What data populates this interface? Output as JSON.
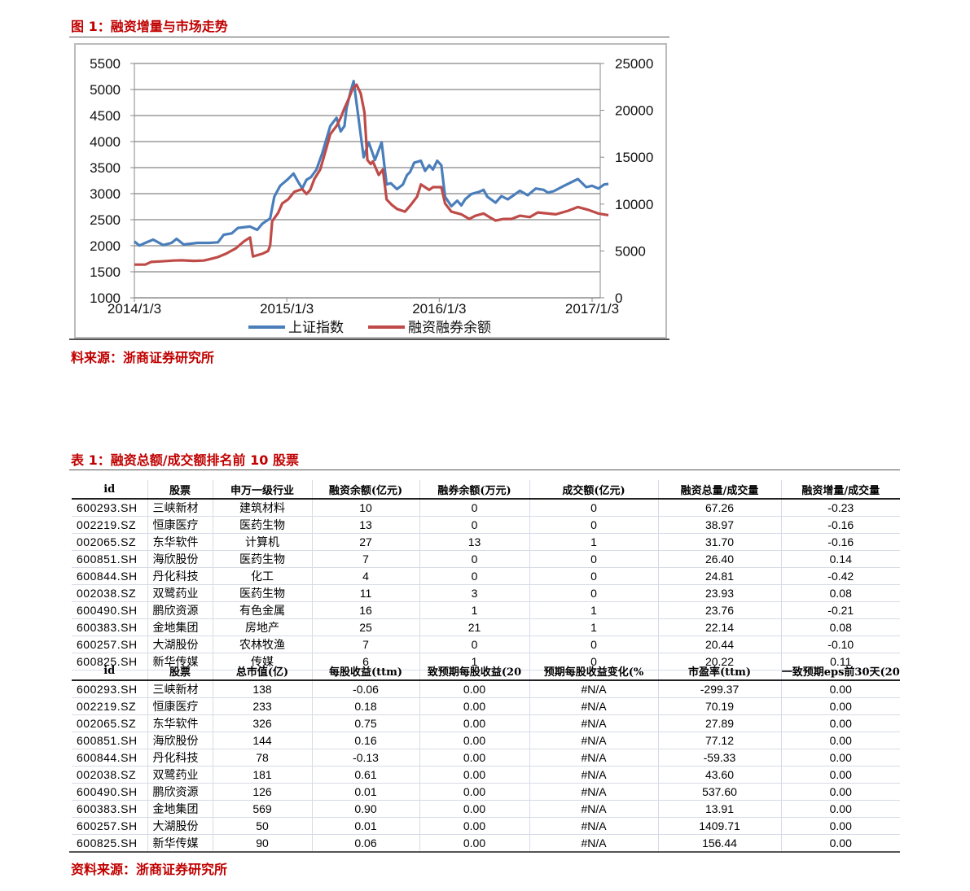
{
  "figure": {
    "title": "图 1：融资增量与市场走势",
    "source": "料来源：浙商证券研究所"
  },
  "chart_data": {
    "type": "line",
    "x_type": "date",
    "x_ticks": [
      "2014/1/3",
      "2015/1/3",
      "2016/1/3",
      "2017/1/3"
    ],
    "y_left": {
      "min": 1000,
      "max": 5500,
      "ticks": [
        1000,
        1500,
        2000,
        2500,
        3000,
        3500,
        4000,
        4500,
        5000,
        5500
      ]
    },
    "y_right": {
      "min": 0,
      "max": 25000,
      "ticks": [
        0,
        5000,
        10000,
        15000,
        20000,
        25000
      ]
    },
    "grid": true,
    "legend": "bottom",
    "series": [
      {
        "name": "上证指数",
        "axis": "left",
        "color": "#4a7ebb",
        "points": [
          [
            "2014-01-03",
            2081
          ],
          [
            "2014-01-15",
            2003
          ],
          [
            "2014-01-29",
            2055
          ],
          [
            "2014-02-17",
            2117
          ],
          [
            "2014-03-13",
            2013
          ],
          [
            "2014-04-02",
            2055
          ],
          [
            "2014-04-14",
            2133
          ],
          [
            "2014-05-01",
            2023
          ],
          [
            "2014-06-03",
            2055
          ],
          [
            "2014-07-02",
            2055
          ],
          [
            "2014-07-22",
            2065
          ],
          [
            "2014-08-05",
            2211
          ],
          [
            "2014-08-24",
            2237
          ],
          [
            "2014-09-08",
            2342
          ],
          [
            "2014-10-07",
            2368
          ],
          [
            "2014-10-24",
            2305
          ],
          [
            "2014-11-05",
            2420
          ],
          [
            "2014-11-24",
            2525
          ],
          [
            "2014-12-04",
            2942
          ],
          [
            "2014-12-18",
            3151
          ],
          [
            "2015-01-06",
            3281
          ],
          [
            "2015-01-19",
            3386
          ],
          [
            "2015-01-30",
            3229
          ],
          [
            "2015-02-09",
            3099
          ],
          [
            "2015-02-19",
            3266
          ],
          [
            "2015-03-02",
            3318
          ],
          [
            "2015-03-15",
            3464
          ],
          [
            "2015-03-29",
            3777
          ],
          [
            "2015-04-17",
            4299
          ],
          [
            "2015-05-02",
            4456
          ],
          [
            "2015-05-12",
            4195
          ],
          [
            "2015-05-21",
            4299
          ],
          [
            "2015-05-26",
            4639
          ],
          [
            "2015-06-05",
            4970
          ],
          [
            "2015-06-12",
            5161
          ],
          [
            "2015-06-22",
            4560
          ],
          [
            "2015-07-06",
            3699
          ],
          [
            "2015-07-18",
            3986
          ],
          [
            "2015-08-02",
            3647
          ],
          [
            "2015-08-18",
            3986
          ],
          [
            "2015-08-30",
            3177
          ],
          [
            "2015-09-09",
            3200
          ],
          [
            "2015-09-24",
            3088
          ],
          [
            "2015-10-08",
            3177
          ],
          [
            "2015-10-18",
            3360
          ],
          [
            "2015-10-25",
            3412
          ],
          [
            "2015-11-04",
            3595
          ],
          [
            "2015-11-20",
            3631
          ],
          [
            "2015-11-30",
            3438
          ],
          [
            "2015-12-10",
            3543
          ],
          [
            "2015-12-19",
            3464
          ],
          [
            "2015-12-29",
            3631
          ],
          [
            "2016-01-08",
            3543
          ],
          [
            "2016-01-17",
            2942
          ],
          [
            "2016-02-01",
            2760
          ],
          [
            "2016-02-15",
            2864
          ],
          [
            "2016-02-25",
            2775
          ],
          [
            "2016-03-05",
            2890
          ],
          [
            "2016-03-20",
            2994
          ],
          [
            "2016-04-08",
            3036
          ],
          [
            "2016-04-18",
            3073
          ],
          [
            "2016-04-27",
            2942
          ],
          [
            "2016-05-17",
            2827
          ],
          [
            "2016-05-31",
            2953
          ],
          [
            "2016-06-15",
            2890
          ],
          [
            "2016-06-29",
            2968
          ],
          [
            "2016-07-14",
            3057
          ],
          [
            "2016-08-02",
            2968
          ],
          [
            "2016-08-21",
            3099
          ],
          [
            "2016-09-09",
            3073
          ],
          [
            "2016-09-19",
            3020
          ],
          [
            "2016-10-03",
            3047
          ],
          [
            "2016-10-28",
            3151
          ],
          [
            "2016-11-30",
            3281
          ],
          [
            "2016-12-20",
            3125
          ],
          [
            "2017-01-03",
            3151
          ],
          [
            "2017-01-18",
            3099
          ],
          [
            "2017-02-01",
            3177
          ],
          [
            "2017-02-11",
            3188
          ]
        ]
      },
      {
        "name": "融资融券余额",
        "axis": "right",
        "color": "#be4b48",
        "points": [
          [
            "2014-01-03",
            3538
          ],
          [
            "2014-01-29",
            3538
          ],
          [
            "2014-02-12",
            3828
          ],
          [
            "2014-03-09",
            3886
          ],
          [
            "2014-04-07",
            3973
          ],
          [
            "2014-04-26",
            4002
          ],
          [
            "2014-05-25",
            3944
          ],
          [
            "2014-06-18",
            3973
          ],
          [
            "2014-07-02",
            4118
          ],
          [
            "2014-07-22",
            4350
          ],
          [
            "2014-08-10",
            4698
          ],
          [
            "2014-09-03",
            5278
          ],
          [
            "2014-09-22",
            6003
          ],
          [
            "2014-10-07",
            6438
          ],
          [
            "2014-10-14",
            4408
          ],
          [
            "2014-11-05",
            4698
          ],
          [
            "2014-11-19",
            4988
          ],
          [
            "2014-11-24",
            5568
          ],
          [
            "2014-11-29",
            8178
          ],
          [
            "2014-12-13",
            9048
          ],
          [
            "2014-12-23",
            10063
          ],
          [
            "2015-01-06",
            10498
          ],
          [
            "2015-01-21",
            11310
          ],
          [
            "2015-02-09",
            11600
          ],
          [
            "2015-02-19",
            11078
          ],
          [
            "2015-02-28",
            11513
          ],
          [
            "2015-03-10",
            12673
          ],
          [
            "2015-03-24",
            13688
          ],
          [
            "2015-04-08",
            16008
          ],
          [
            "2015-04-17",
            17458
          ],
          [
            "2015-05-02",
            18328
          ],
          [
            "2015-05-12",
            19198
          ],
          [
            "2015-05-21",
            20213
          ],
          [
            "2015-05-31",
            21228
          ],
          [
            "2015-06-09",
            22243
          ],
          [
            "2015-06-19",
            22736
          ],
          [
            "2015-06-29",
            21808
          ],
          [
            "2015-07-08",
            19778
          ],
          [
            "2015-07-15",
            14703
          ],
          [
            "2015-07-23",
            14268
          ],
          [
            "2015-07-28",
            14558
          ],
          [
            "2015-08-11",
            13108
          ],
          [
            "2015-08-21",
            13688
          ],
          [
            "2015-08-30",
            10498
          ],
          [
            "2015-09-11",
            9918
          ],
          [
            "2015-09-24",
            9483
          ],
          [
            "2015-10-13",
            9193
          ],
          [
            "2015-10-27",
            9918
          ],
          [
            "2015-11-11",
            10788
          ],
          [
            "2015-11-20",
            12093
          ],
          [
            "2015-11-30",
            11803
          ],
          [
            "2015-12-10",
            11513
          ],
          [
            "2015-12-19",
            11803
          ],
          [
            "2016-01-08",
            11803
          ],
          [
            "2016-01-17",
            10063
          ],
          [
            "2016-02-01",
            9193
          ],
          [
            "2016-02-25",
            8903
          ],
          [
            "2016-03-15",
            8410
          ],
          [
            "2016-03-30",
            8758
          ],
          [
            "2016-04-18",
            8990
          ],
          [
            "2016-05-02",
            8613
          ],
          [
            "2016-05-17",
            8236
          ],
          [
            "2016-06-05",
            8410
          ],
          [
            "2016-06-24",
            8410
          ],
          [
            "2016-07-14",
            8758
          ],
          [
            "2016-08-07",
            8613
          ],
          [
            "2016-08-26",
            9106
          ],
          [
            "2016-09-19",
            8990
          ],
          [
            "2016-10-08",
            8903
          ],
          [
            "2016-11-06",
            9280
          ],
          [
            "2016-11-30",
            9686
          ],
          [
            "2016-12-24",
            9396
          ],
          [
            "2017-01-18",
            8990
          ],
          [
            "2017-02-11",
            8816
          ]
        ]
      }
    ]
  },
  "table": {
    "title": "表 1：融资总额/成交额排名前 10 股票",
    "source": "资料来源：浙商证券研究所",
    "headers1": [
      "id",
      "股票",
      "申万一级行业",
      "融资余额(亿元)",
      "融券余额(万元)",
      "成交额(亿元)",
      "融资总量/成交量",
      "融资增量/成交量"
    ],
    "rows1": [
      [
        "600293.SH",
        "三峡新材",
        "建筑材料",
        "10",
        "0",
        "0",
        "67.26",
        "-0.23"
      ],
      [
        "002219.SZ",
        "恒康医疗",
        "医药生物",
        "13",
        "0",
        "0",
        "38.97",
        "-0.16"
      ],
      [
        "002065.SZ",
        "东华软件",
        "计算机",
        "27",
        "13",
        "1",
        "31.70",
        "-0.16"
      ],
      [
        "600851.SH",
        "海欣股份",
        "医药生物",
        "7",
        "0",
        "0",
        "26.40",
        "0.14"
      ],
      [
        "600844.SH",
        "丹化科技",
        "化工",
        "4",
        "0",
        "0",
        "24.81",
        "-0.42"
      ],
      [
        "002038.SZ",
        "双鹭药业",
        "医药生物",
        "11",
        "3",
        "0",
        "23.93",
        "0.08"
      ],
      [
        "600490.SH",
        "鹏欣资源",
        "有色金属",
        "16",
        "1",
        "1",
        "23.76",
        "-0.21"
      ],
      [
        "600383.SH",
        "金地集团",
        "房地产",
        "25",
        "21",
        "1",
        "22.14",
        "0.08"
      ],
      [
        "600257.SH",
        "大湖股份",
        "农林牧渔",
        "7",
        "0",
        "0",
        "20.44",
        "-0.10"
      ],
      [
        "600825.SH",
        "新华传媒",
        "传媒",
        "6",
        "1",
        "0",
        "20.22",
        "0.11"
      ]
    ],
    "headers2": [
      "id",
      "股票",
      "总市值(亿)",
      "每股收益(ttm)",
      "致预期每股收益(20",
      "预期每股收益变化(%",
      "市盈率(ttm)",
      "一致预期eps前30天(20"
    ],
    "rows2": [
      [
        "600293.SH",
        "三峡新材",
        "138",
        "-0.06",
        "0.00",
        "#N/A",
        "-299.37",
        "0.00"
      ],
      [
        "002219.SZ",
        "恒康医疗",
        "233",
        "0.18",
        "0.00",
        "#N/A",
        "70.19",
        "0.00"
      ],
      [
        "002065.SZ",
        "东华软件",
        "326",
        "0.75",
        "0.00",
        "#N/A",
        "27.89",
        "0.00"
      ],
      [
        "600851.SH",
        "海欣股份",
        "144",
        "0.16",
        "0.00",
        "#N/A",
        "77.12",
        "0.00"
      ],
      [
        "600844.SH",
        "丹化科技",
        "78",
        "-0.13",
        "0.00",
        "#N/A",
        "-59.33",
        "0.00"
      ],
      [
        "002038.SZ",
        "双鹭药业",
        "181",
        "0.61",
        "0.00",
        "#N/A",
        "43.60",
        "0.00"
      ],
      [
        "600490.SH",
        "鹏欣资源",
        "126",
        "0.01",
        "0.00",
        "#N/A",
        "537.60",
        "0.00"
      ],
      [
        "600383.SH",
        "金地集团",
        "569",
        "0.90",
        "0.00",
        "#N/A",
        "13.91",
        "0.00"
      ],
      [
        "600257.SH",
        "大湖股份",
        "50",
        "0.01",
        "0.00",
        "#N/A",
        "1409.71",
        "0.00"
      ],
      [
        "600825.SH",
        "新华传媒",
        "90",
        "0.06",
        "0.00",
        "#N/A",
        "156.44",
        "0.00"
      ]
    ]
  }
}
